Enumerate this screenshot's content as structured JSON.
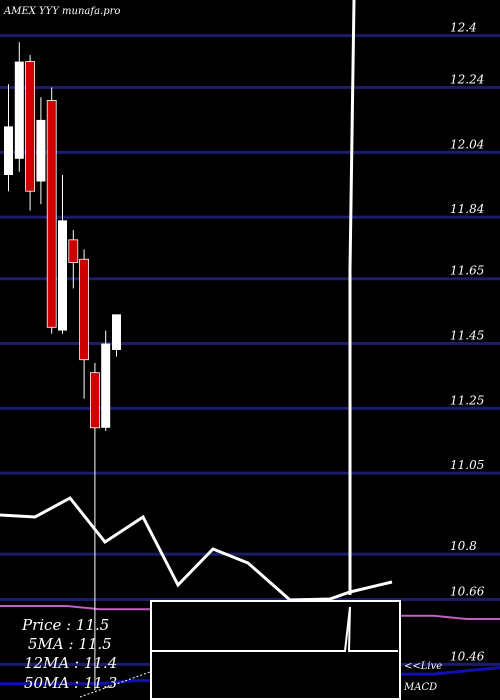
{
  "header": "AMEX YYY munafa.pro",
  "colors": {
    "background": "#000000",
    "grid": "#1c1c6b",
    "up": "#ffffff",
    "down": "#cc0000",
    "ma_short": "#c060c0",
    "ma_long": "#1010b0"
  },
  "info_panel": {
    "price": "Price   : 11.5",
    "ma5": "5MA  : 11.5",
    "ma12": "12MA : 11.4",
    "ma50": "50MA : 11.3"
  },
  "macd_label_1": "<<Live",
  "macd_label_2": "MACD",
  "chart_data": {
    "type": "candlestick",
    "y_ticks": [
      "12.4",
      "12.24",
      "12.04",
      "11.84",
      "11.65",
      "11.45",
      "11.25",
      "11.05",
      "10.8",
      "10.66",
      "10.46"
    ],
    "y_tick_values": [
      12.4,
      12.24,
      12.04,
      11.84,
      11.65,
      11.45,
      11.25,
      11.05,
      10.8,
      10.66,
      10.46
    ],
    "ylim": [
      10.35,
      12.51
    ],
    "candles": [
      {
        "open": 11.97,
        "close": 12.12,
        "high": 12.25,
        "low": 11.92
      },
      {
        "open": 12.02,
        "close": 12.32,
        "high": 12.38,
        "low": 11.98
      },
      {
        "open": 12.32,
        "close": 11.92,
        "high": 12.34,
        "low": 11.86
      },
      {
        "open": 11.95,
        "close": 12.14,
        "high": 12.21,
        "low": 11.88
      },
      {
        "open": 12.2,
        "close": 11.5,
        "high": 12.24,
        "low": 11.48
      },
      {
        "open": 11.49,
        "close": 11.83,
        "high": 11.97,
        "low": 11.48
      },
      {
        "open": 11.77,
        "close": 11.7,
        "high": 11.8,
        "low": 11.62
      },
      {
        "open": 11.71,
        "close": 11.4,
        "high": 11.74,
        "low": 11.28
      },
      {
        "open": 11.36,
        "close": 11.19,
        "high": 11.39,
        "low": 10.38
      },
      {
        "open": 11.19,
        "close": 11.45,
        "high": 11.49,
        "low": 11.18
      },
      {
        "open": 11.43,
        "close": 11.54,
        "high": 11.54,
        "low": 11.41
      }
    ],
    "ma_short": [
      10.64,
      10.64,
      10.64,
      10.63,
      10.63,
      10.63,
      10.63,
      10.62,
      10.62,
      10.62,
      10.62,
      10.61,
      10.61,
      10.61,
      10.6,
      10.6
    ],
    "ma_long": [
      10.4,
      10.4,
      10.4,
      10.4,
      10.41,
      10.41,
      10.42,
      10.42,
      10.42,
      10.42,
      10.43,
      10.43,
      10.43,
      10.43,
      10.44,
      10.45
    ]
  }
}
